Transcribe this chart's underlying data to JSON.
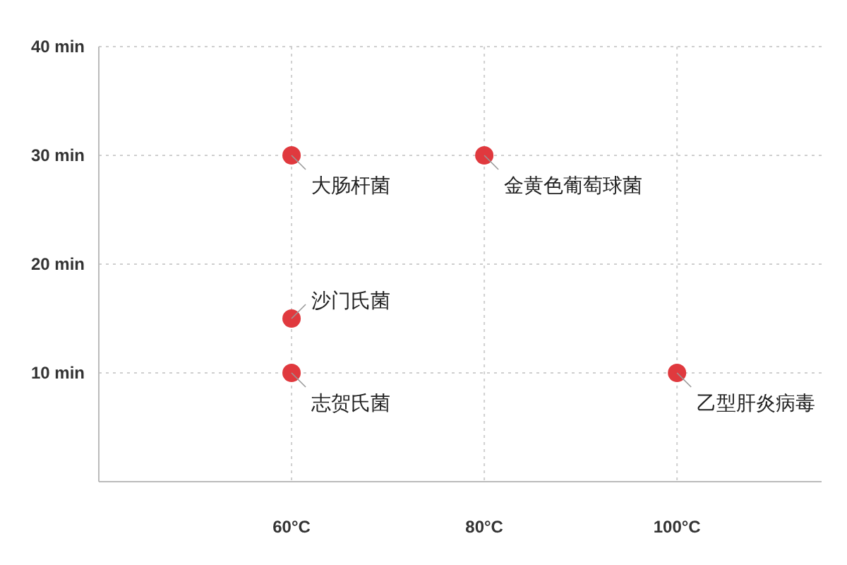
{
  "chart_data": {
    "type": "scatter",
    "x": [
      60,
      80,
      60,
      60,
      100
    ],
    "values": [
      30,
      30,
      15,
      10,
      10
    ],
    "color": "#e0393e",
    "xlim": [
      40,
      115
    ],
    "ylim": [
      0,
      40
    ],
    "xticks": [
      {
        "value": 60,
        "label": "60°C"
      },
      {
        "value": 80,
        "label": "80°C"
      },
      {
        "value": 100,
        "label": "100°C"
      }
    ],
    "yticks": [
      {
        "value": 10,
        "label": "10 min"
      },
      {
        "value": 20,
        "label": "20 min"
      },
      {
        "value": 30,
        "label": "30 min"
      },
      {
        "value": 40,
        "label": "40 min"
      }
    ],
    "grid": true,
    "marker": "circle",
    "annotations": [
      {
        "text": "大肠杆菌",
        "x": 60,
        "y": 30
      },
      {
        "text": "金黄色葡萄球菌",
        "x": 80,
        "y": 30
      },
      {
        "text": "沙门氏菌",
        "x": 60,
        "y": 15
      },
      {
        "text": "志贺氏菌",
        "x": 60,
        "y": 10
      },
      {
        "text": "乙型肝炎病毒",
        "x": 100,
        "y": 10
      }
    ]
  }
}
